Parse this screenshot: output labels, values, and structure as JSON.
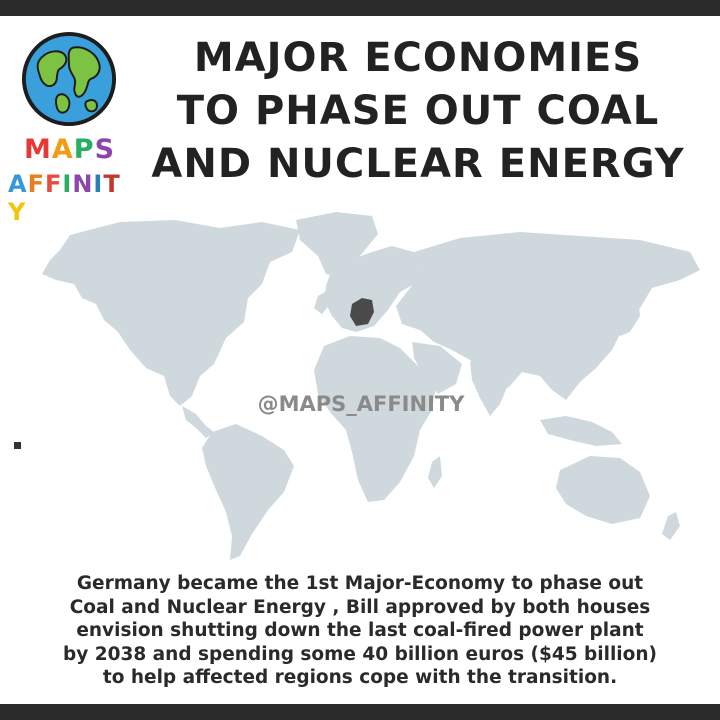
{
  "logo": {
    "line1": [
      "M",
      "A",
      "P",
      "S"
    ],
    "line2": [
      "A",
      "F",
      "F",
      "I",
      "N",
      "I",
      "T",
      "Y"
    ],
    "line1_colors": [
      "#e53935",
      "#f39c12",
      "#27ae60",
      "#8e44ad"
    ],
    "line2_colors": [
      "#3498db",
      "#e67e22",
      "#e74c3c",
      "#27ae60",
      "#8e44ad",
      "#2980b9",
      "#c0392b",
      "#f1c40f"
    ]
  },
  "title": {
    "lines": [
      "MAJOR ECONOMIES",
      "TO PHASE OUT COAL",
      "AND NUCLEAR ENERGY"
    ]
  },
  "map": {
    "land_color": "#cfd8dc",
    "highlight_color": "#4a4a4a",
    "highlighted_country": "Germany",
    "watermark": "@MAPS_AFFINITY"
  },
  "caption": {
    "lines": [
      "Germany became the 1st Major-Economy to phase out",
      "Coal and Nuclear Energy , Bill approved by both houses",
      "envision shutting down the last coal-fired power plant",
      "by 2038 and spending some 40 billion euros ($45 billion)",
      "to help affected regions cope with the transition."
    ]
  }
}
